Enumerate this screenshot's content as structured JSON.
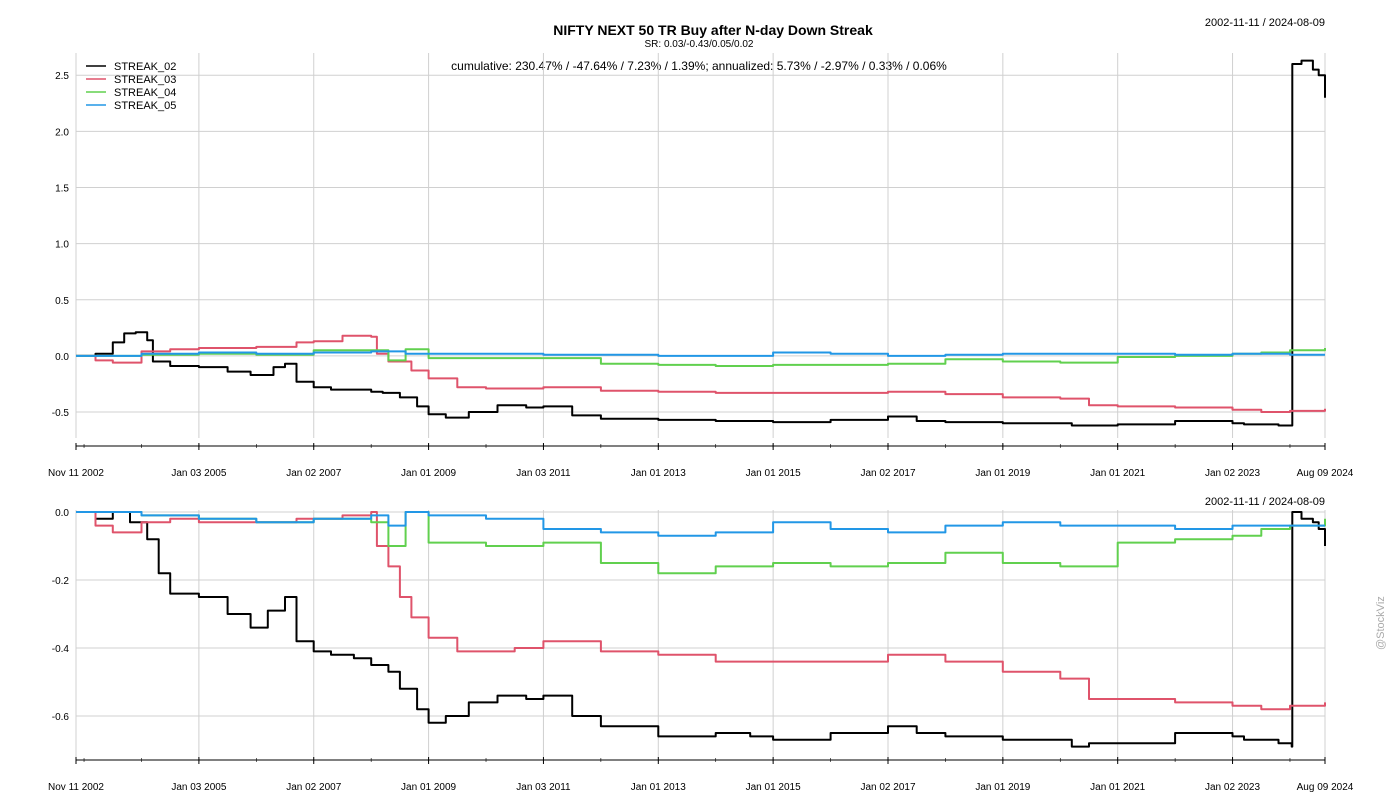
{
  "chart_data": [
    {
      "type": "line",
      "title": "NIFTY NEXT 50 TR Buy after N-day Down Streak",
      "subtitle": "SR: 0.03/-0.43/0.05/0.02",
      "date_range": "2002-11-11 / 2024-08-09",
      "annotation": "cumulative: 230.47% / -47.64% / 7.23% / 1.39%; annualized: 5.73% / -2.97% / 0.33% / 0.06%",
      "x_tick_labels": [
        "Nov 11 2002",
        "Jan 03 2005",
        "Jan 02 2007",
        "Jan 01 2009",
        "Jan 03 2011",
        "Jan 01 2013",
        "Jan 01 2015",
        "Jan 02 2017",
        "Jan 01 2019",
        "Jan 01 2021",
        "Jan 02 2023",
        "Aug 09 2024"
      ],
      "x_tick_values": [
        2002.86,
        2005.0,
        2007.0,
        2009.0,
        2011.0,
        2013.0,
        2015.0,
        2017.0,
        2019.0,
        2021.0,
        2023.0,
        2024.61
      ],
      "xlim": [
        2002.86,
        2024.61
      ],
      "y_tick_values": [
        -0.5,
        0.0,
        0.5,
        1.0,
        1.5,
        2.0,
        2.5
      ],
      "y_tick_labels": [
        "-0.5",
        "0.0",
        "0.5",
        "1.0",
        "1.5",
        "2.0",
        "2.5"
      ],
      "ylim": [
        -0.66,
        2.68
      ],
      "grid": true,
      "legend_position": "top-left",
      "series": [
        {
          "name": "STREAK_02",
          "color": "#000000",
          "x": [
            2002.86,
            2003.2,
            2003.5,
            2003.7,
            2003.9,
            2004.1,
            2004.2,
            2004.5,
            2005.0,
            2005.5,
            2005.9,
            2006.3,
            2006.5,
            2006.7,
            2007.0,
            2007.3,
            2007.7,
            2008.0,
            2008.2,
            2008.5,
            2008.8,
            2009.0,
            2009.3,
            2009.7,
            2010.2,
            2010.7,
            2011.0,
            2011.5,
            2012.0,
            2013.0,
            2014.0,
            2014.6,
            2015.0,
            2016.0,
            2017.0,
            2017.5,
            2018.0,
            2019.0,
            2020.2,
            2020.5,
            2021.0,
            2022.0,
            2023.0,
            2023.2,
            2023.8,
            2024.03,
            2024.04,
            2024.2,
            2024.4,
            2024.5,
            2024.61
          ],
          "y": [
            0.0,
            0.02,
            0.12,
            0.2,
            0.21,
            0.14,
            -0.05,
            -0.09,
            -0.1,
            -0.14,
            -0.17,
            -0.1,
            -0.07,
            -0.23,
            -0.28,
            -0.3,
            -0.3,
            -0.32,
            -0.33,
            -0.37,
            -0.45,
            -0.52,
            -0.55,
            -0.5,
            -0.44,
            -0.46,
            -0.45,
            -0.53,
            -0.56,
            -0.57,
            -0.58,
            -0.58,
            -0.59,
            -0.57,
            -0.54,
            -0.58,
            -0.59,
            -0.6,
            -0.62,
            -0.62,
            -0.61,
            -0.58,
            -0.6,
            -0.61,
            -0.62,
            -0.62,
            2.6,
            2.63,
            2.55,
            2.5,
            2.3
          ]
        },
        {
          "name": "STREAK_03",
          "color": "#DF536B",
          "x": [
            2002.86,
            2003.2,
            2003.5,
            2004.0,
            2004.5,
            2005.0,
            2006.0,
            2006.7,
            2007.0,
            2007.5,
            2008.0,
            2008.1,
            2008.3,
            2008.7,
            2009.0,
            2009.5,
            2010.0,
            2010.5,
            2011.0,
            2012.0,
            2013.0,
            2014.0,
            2015.0,
            2016.0,
            2017.0,
            2018.0,
            2019.0,
            2020.0,
            2020.5,
            2021.0,
            2022.0,
            2023.0,
            2023.5,
            2024.0,
            2024.61
          ],
          "y": [
            0.0,
            -0.04,
            -0.06,
            0.04,
            0.06,
            0.07,
            0.08,
            0.12,
            0.13,
            0.18,
            0.17,
            0.02,
            -0.05,
            -0.13,
            -0.2,
            -0.28,
            -0.29,
            -0.29,
            -0.28,
            -0.31,
            -0.32,
            -0.33,
            -0.33,
            -0.33,
            -0.32,
            -0.34,
            -0.37,
            -0.38,
            -0.44,
            -0.45,
            -0.46,
            -0.48,
            -0.5,
            -0.49,
            -0.47
          ]
        },
        {
          "name": "STREAK_04",
          "color": "#61D04F",
          "x": [
            2002.86,
            2004.0,
            2005.0,
            2006.0,
            2007.0,
            2008.0,
            2008.3,
            2008.6,
            2009.0,
            2010.0,
            2011.0,
            2012.0,
            2013.0,
            2014.0,
            2015.0,
            2016.0,
            2017.0,
            2018.0,
            2019.0,
            2020.0,
            2021.0,
            2022.0,
            2023.0,
            2023.5,
            2024.0,
            2024.61
          ],
          "y": [
            0.0,
            0.01,
            0.02,
            0.01,
            0.05,
            0.05,
            -0.04,
            0.06,
            -0.02,
            -0.02,
            -0.02,
            -0.07,
            -0.08,
            -0.09,
            -0.08,
            -0.08,
            -0.07,
            -0.03,
            -0.05,
            -0.06,
            -0.01,
            0.0,
            0.02,
            0.03,
            0.05,
            0.07
          ]
        },
        {
          "name": "STREAK_05",
          "color": "#2297E6",
          "x": [
            2002.86,
            2004.0,
            2005.0,
            2006.0,
            2007.0,
            2008.0,
            2008.6,
            2009.0,
            2010.0,
            2011.0,
            2012.0,
            2013.0,
            2014.0,
            2015.0,
            2016.0,
            2017.0,
            2018.0,
            2019.0,
            2020.0,
            2021.0,
            2022.0,
            2023.0,
            2024.0,
            2024.61
          ],
          "y": [
            0.0,
            0.02,
            0.03,
            0.02,
            0.03,
            0.04,
            0.02,
            0.02,
            0.02,
            0.01,
            0.01,
            0.0,
            0.0,
            0.03,
            0.02,
            0.0,
            0.01,
            0.02,
            0.02,
            0.02,
            0.01,
            0.02,
            0.01,
            0.01
          ]
        }
      ]
    },
    {
      "type": "line",
      "date_range": "2002-11-11 / 2024-08-09",
      "x_tick_labels": [
        "Nov 11 2002",
        "Jan 03 2005",
        "Jan 02 2007",
        "Jan 01 2009",
        "Jan 03 2011",
        "Jan 01 2013",
        "Jan 01 2015",
        "Jan 02 2017",
        "Jan 01 2019",
        "Jan 01 2021",
        "Jan 02 2023",
        "Aug 09 2024"
      ],
      "x_tick_values": [
        2002.86,
        2005.0,
        2007.0,
        2009.0,
        2011.0,
        2013.0,
        2015.0,
        2017.0,
        2019.0,
        2021.0,
        2023.0,
        2024.61
      ],
      "xlim": [
        2002.86,
        2024.61
      ],
      "y_tick_values": [
        -0.6,
        -0.4,
        -0.2,
        0.0
      ],
      "y_tick_labels": [
        "-0.6",
        "-0.4",
        "-0.2",
        "0.0"
      ],
      "ylim": [
        -0.7,
        0.0
      ],
      "grid": true,
      "series": [
        {
          "name": "STREAK_02",
          "color": "#000000",
          "x": [
            2002.86,
            2003.2,
            2003.5,
            2003.8,
            2004.1,
            2004.3,
            2004.5,
            2005.0,
            2005.5,
            2005.9,
            2006.2,
            2006.5,
            2006.7,
            2007.0,
            2007.3,
            2007.7,
            2008.0,
            2008.3,
            2008.5,
            2008.8,
            2009.0,
            2009.3,
            2009.7,
            2010.2,
            2010.7,
            2011.0,
            2011.5,
            2012.0,
            2013.0,
            2014.0,
            2014.6,
            2015.0,
            2016.0,
            2017.0,
            2017.5,
            2018.0,
            2019.0,
            2020.2,
            2020.5,
            2021.0,
            2022.0,
            2023.0,
            2023.2,
            2023.8,
            2024.03,
            2024.04,
            2024.2,
            2024.4,
            2024.5,
            2024.61
          ],
          "y": [
            0.0,
            -0.02,
            0.0,
            -0.03,
            -0.08,
            -0.18,
            -0.24,
            -0.25,
            -0.3,
            -0.34,
            -0.29,
            -0.25,
            -0.38,
            -0.41,
            -0.42,
            -0.43,
            -0.45,
            -0.47,
            -0.52,
            -0.58,
            -0.62,
            -0.6,
            -0.56,
            -0.54,
            -0.55,
            -0.54,
            -0.6,
            -0.63,
            -0.66,
            -0.65,
            -0.66,
            -0.67,
            -0.65,
            -0.63,
            -0.65,
            -0.66,
            -0.67,
            -0.69,
            -0.68,
            -0.68,
            -0.65,
            -0.66,
            -0.67,
            -0.68,
            -0.69,
            0.0,
            -0.02,
            -0.03,
            -0.05,
            -0.1
          ]
        },
        {
          "name": "STREAK_03",
          "color": "#DF536B",
          "x": [
            2002.86,
            2003.2,
            2003.5,
            2004.0,
            2004.5,
            2005.0,
            2006.0,
            2006.7,
            2007.0,
            2007.5,
            2008.0,
            2008.1,
            2008.3,
            2008.5,
            2008.7,
            2009.0,
            2009.5,
            2010.0,
            2010.5,
            2011.0,
            2012.0,
            2013.0,
            2014.0,
            2015.0,
            2016.0,
            2017.0,
            2018.0,
            2019.0,
            2020.0,
            2020.5,
            2021.0,
            2022.0,
            2023.0,
            2023.5,
            2024.0,
            2024.61
          ],
          "y": [
            0.0,
            -0.04,
            -0.06,
            -0.03,
            -0.02,
            -0.03,
            -0.03,
            -0.02,
            -0.02,
            -0.01,
            0.0,
            -0.1,
            -0.16,
            -0.25,
            -0.31,
            -0.37,
            -0.41,
            -0.41,
            -0.4,
            -0.38,
            -0.41,
            -0.42,
            -0.44,
            -0.44,
            -0.44,
            -0.42,
            -0.44,
            -0.47,
            -0.49,
            -0.55,
            -0.55,
            -0.56,
            -0.57,
            -0.58,
            -0.57,
            -0.56
          ]
        },
        {
          "name": "STREAK_04",
          "color": "#61D04F",
          "x": [
            2002.86,
            2004.0,
            2005.0,
            2006.0,
            2007.0,
            2008.0,
            2008.3,
            2008.6,
            2009.0,
            2010.0,
            2011.0,
            2012.0,
            2013.0,
            2014.0,
            2015.0,
            2016.0,
            2017.0,
            2018.0,
            2019.0,
            2020.0,
            2021.0,
            2022.0,
            2023.0,
            2023.5,
            2024.0,
            2024.61
          ],
          "y": [
            0.0,
            -0.01,
            -0.02,
            -0.03,
            -0.02,
            -0.03,
            -0.1,
            0.0,
            -0.09,
            -0.1,
            -0.09,
            -0.15,
            -0.18,
            -0.16,
            -0.15,
            -0.16,
            -0.15,
            -0.12,
            -0.15,
            -0.16,
            -0.09,
            -0.08,
            -0.07,
            -0.05,
            -0.04,
            -0.02
          ]
        },
        {
          "name": "STREAK_05",
          "color": "#2297E6",
          "x": [
            2002.86,
            2004.0,
            2005.0,
            2006.0,
            2007.0,
            2008.0,
            2008.3,
            2008.6,
            2009.0,
            2010.0,
            2011.0,
            2012.0,
            2013.0,
            2014.0,
            2015.0,
            2016.0,
            2017.0,
            2018.0,
            2019.0,
            2020.0,
            2021.0,
            2022.0,
            2023.0,
            2024.0,
            2024.61
          ],
          "y": [
            0.0,
            -0.01,
            -0.02,
            -0.03,
            -0.02,
            -0.01,
            -0.04,
            0.0,
            -0.01,
            -0.02,
            -0.05,
            -0.06,
            -0.07,
            -0.06,
            -0.03,
            -0.05,
            -0.06,
            -0.04,
            -0.03,
            -0.04,
            -0.04,
            -0.05,
            -0.04,
            -0.04,
            -0.04
          ]
        }
      ]
    }
  ],
  "watermark": "@StockViz"
}
